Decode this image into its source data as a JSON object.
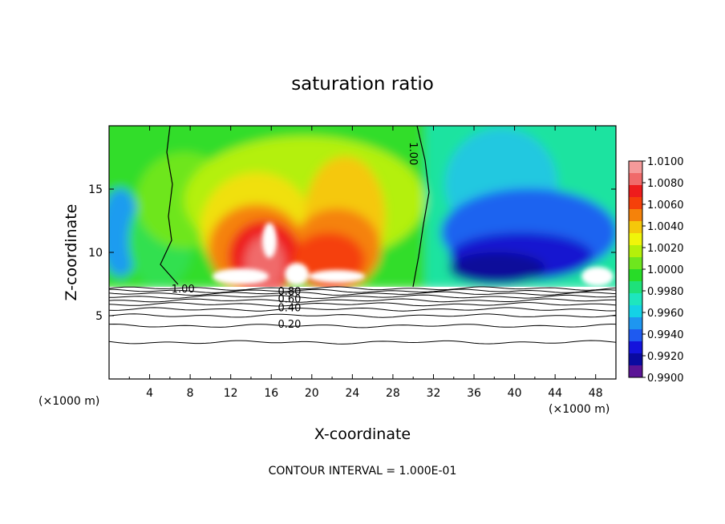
{
  "chart_data": {
    "type": "heatmap",
    "title": "saturation ratio",
    "xlabel": "X-coordinate",
    "ylabel": "Z-coordinate",
    "x_unit_left": "(×1000 m)",
    "x_unit_right": "(×1000 m)",
    "xlim": [
      0,
      50
    ],
    "ylim": [
      0,
      20
    ],
    "x_ticks": [
      4,
      8,
      12,
      16,
      20,
      24,
      28,
      32,
      36,
      40,
      44,
      48
    ],
    "y_ticks": [
      5,
      10,
      15
    ],
    "colorbar": {
      "levels": [
        "1.0100",
        "1.0080",
        "1.0060",
        "1.0040",
        "1.0020",
        "1.0000",
        "0.9980",
        "0.9960",
        "0.9940",
        "0.9920",
        "0.9900"
      ],
      "colors": [
        "#f59a9a",
        "#f06a6a",
        "#ee1c1c",
        "#f5400a",
        "#f5820a",
        "#f5c80a",
        "#f0f50a",
        "#b4f00a",
        "#6ee61e",
        "#28dc28",
        "#1ee17a",
        "#1ee6be",
        "#14d2e6",
        "#1e96f0",
        "#1e5af0",
        "#1414dc",
        "#0a0aa0",
        "#5a1496"
      ]
    },
    "contours": {
      "interval": 0.1,
      "footer": "CONTOUR INTERVAL = 1.000E-01",
      "labels": [
        {
          "text": "1.00",
          "x": 7.3,
          "z": 7.1
        },
        {
          "text": "1.00",
          "x": 30.0,
          "z": 17.8
        },
        {
          "text": "0.80",
          "x": 17.8,
          "z": 6.9
        },
        {
          "text": "0.60",
          "x": 17.8,
          "z": 6.3
        },
        {
          "text": "0.40",
          "x": 17.8,
          "z": 5.6
        },
        {
          "text": "0.20",
          "x": 17.8,
          "z": 4.3
        }
      ],
      "lines_z": [
        7.15,
        6.95,
        6.75,
        6.5,
        6.2,
        5.9,
        5.5,
        5.0,
        4.2,
        2.9
      ]
    }
  }
}
